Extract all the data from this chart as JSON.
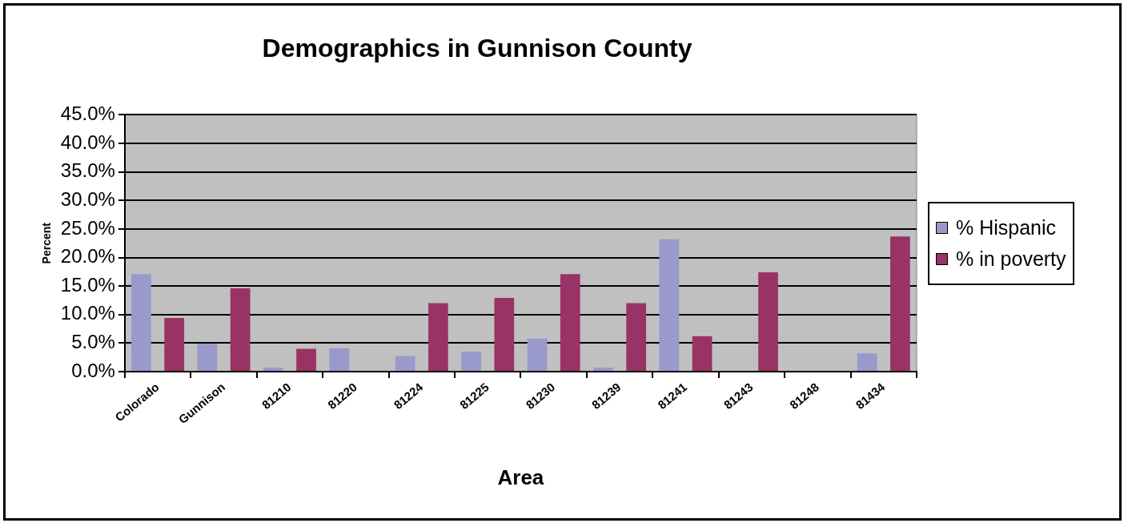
{
  "chart_data": {
    "type": "bar",
    "title": "Demographics in Gunnison County",
    "xlabel": "Area",
    "ylabel": "Percent",
    "categories": [
      "Colorado",
      "Gunnison",
      "81210",
      "81220",
      "81224",
      "81225",
      "81230",
      "81239",
      "81241",
      "81243",
      "81248",
      "81434"
    ],
    "series": [
      {
        "name": "% Hispanic",
        "color": "#9999cc",
        "values": [
          17.1,
          4.9,
          0.7,
          4.1,
          2.7,
          3.5,
          5.8,
          0.7,
          23.2,
          null,
          null,
          3.2
        ]
      },
      {
        "name": "% in poverty",
        "color": "#993366",
        "values": [
          9.4,
          14.6,
          4.0,
          null,
          12.0,
          12.9,
          17.1,
          12.0,
          6.2,
          17.4,
          null,
          23.7
        ]
      }
    ],
    "ylim": [
      0,
      45
    ],
    "yticks": [
      {
        "value": 0,
        "label": "0.0%"
      },
      {
        "value": 5,
        "label": "5.0%"
      },
      {
        "value": 10,
        "label": "10.0%"
      },
      {
        "value": 15,
        "label": "15.0%"
      },
      {
        "value": 20,
        "label": "20.0%"
      },
      {
        "value": 25,
        "label": "25.0%"
      },
      {
        "value": 30,
        "label": "30.0%"
      },
      {
        "value": 35,
        "label": "35.0%"
      },
      {
        "value": 40,
        "label": "40.0%"
      },
      {
        "value": 45,
        "label": "45.0%"
      }
    ],
    "grid": "y",
    "legend": "right"
  }
}
